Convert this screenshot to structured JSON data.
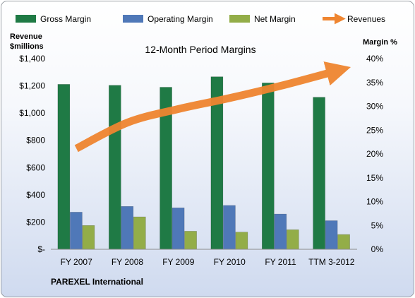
{
  "chart_data": {
    "type": "bar",
    "title": "12-Month Period Margins",
    "left_axis_title": [
      "Revenue",
      "$millions"
    ],
    "right_axis_title": "Margin %",
    "categories": [
      "FY 2007",
      "FY 2008",
      "FY 2009",
      "FY 2010",
      "FY 2011",
      "TTM 3-2012"
    ],
    "left_ticks": [
      "$-",
      "$200",
      "$400",
      "$600",
      "$800",
      "$1,000",
      "$1,200",
      "$1,400"
    ],
    "right_ticks": [
      "0%",
      "5%",
      "10%",
      "15%",
      "20%",
      "25%",
      "30%",
      "35%",
      "40%"
    ],
    "ylim_left": [
      0,
      1400
    ],
    "ylim_right": [
      0,
      40
    ],
    "grid": false,
    "legend_position": "top",
    "series": [
      {
        "name": "Gross Margin",
        "type": "bar",
        "axis": "right",
        "color": "#1f7a45",
        "values": [
          34.6,
          34.4,
          34.0,
          36.2,
          34.9,
          31.9
        ]
      },
      {
        "name": "Operating Margin",
        "type": "bar",
        "axis": "right",
        "color": "#4f78b8",
        "values": [
          7.8,
          9.0,
          8.7,
          9.2,
          7.4,
          6.0
        ]
      },
      {
        "name": "Net Margin",
        "type": "bar",
        "axis": "right",
        "color": "#93ad48",
        "values": [
          5.0,
          6.8,
          3.8,
          3.6,
          4.1,
          3.1
        ]
      },
      {
        "name": "Revenues",
        "type": "line",
        "axis": "left",
        "color": "#ef8530",
        "values": [
          740,
          930,
          1030,
          1110,
          1200,
          1300
        ]
      }
    ],
    "footer": "PAREXEL International"
  }
}
